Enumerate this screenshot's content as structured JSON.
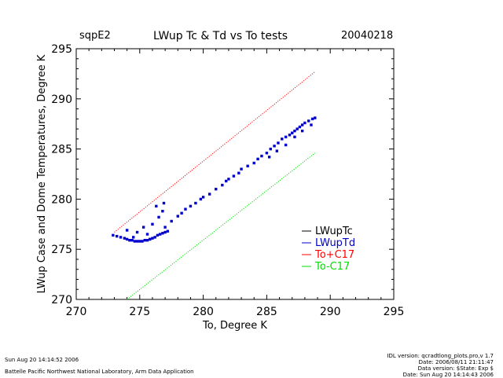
{
  "header": {
    "site": "sqpE2",
    "title": "LWup Tc & Td vs To tests",
    "date": "20040218"
  },
  "footer": {
    "left_line1": "Sun Aug 20 14:14:52 2006",
    "left_line2": "Battelle Pacific Northwest National Laboratory, Arm Data Application",
    "right_lines": [
      "IDL version: qcradtlong_plots.pro,v 1.7",
      "Date: 2006/08/11 21:11:47",
      "Data version: $State: Exp $",
      "Date: Sun Aug 20 14:14:43 2006"
    ]
  },
  "chart_data": {
    "type": "scatter",
    "title": "LWup Tc & Td vs To tests",
    "xlabel": "To, Degree K",
    "ylabel": "LWup Case and Dome Temperatures, Degree K",
    "xlim": [
      270,
      295
    ],
    "ylim": [
      270,
      295
    ],
    "xticks": [
      270,
      275,
      280,
      285,
      290,
      295
    ],
    "yticks": [
      270,
      275,
      280,
      285,
      290,
      295
    ],
    "legend_position": "bottom-right",
    "series": [
      {
        "name": "LWupTc",
        "color": "#000000",
        "marker": "none",
        "x": [],
        "y": []
      },
      {
        "name": "LWupTd",
        "color": "#0000cc",
        "marker": "square",
        "x": [
          272.9,
          273.2,
          273.5,
          273.8,
          274.0,
          274.2,
          274.4,
          274.6,
          274.8,
          275.0,
          275.2,
          275.4,
          275.6,
          275.8,
          276.0,
          276.2,
          276.4,
          276.6,
          276.8,
          277.0,
          277.2,
          276.0,
          276.5,
          276.8,
          277.0,
          277.5,
          278.0,
          278.3,
          278.6,
          279.0,
          279.4,
          279.8,
          280.0,
          280.5,
          281.0,
          281.5,
          281.8,
          282.0,
          282.4,
          282.8,
          283.0,
          283.5,
          284.0,
          284.3,
          284.6,
          285.0,
          285.3,
          285.6,
          285.9,
          286.2,
          286.5,
          286.8,
          287.0,
          287.2,
          287.4,
          287.6,
          287.8,
          288.0,
          288.3,
          288.6,
          288.8,
          285.2,
          285.8,
          286.5,
          287.2,
          287.8,
          288.5,
          274.5,
          275.3,
          275.6,
          275.8,
          276.3,
          276.9,
          274.0,
          274.8
        ],
        "y": [
          276.4,
          276.3,
          276.2,
          276.1,
          276.0,
          275.9,
          275.9,
          275.8,
          275.8,
          275.8,
          275.8,
          275.9,
          275.9,
          276.0,
          276.1,
          276.2,
          276.4,
          276.5,
          276.6,
          276.7,
          276.8,
          277.5,
          278.2,
          278.8,
          277.2,
          277.8,
          278.3,
          278.6,
          279.0,
          279.3,
          279.6,
          280.0,
          280.2,
          280.5,
          281.0,
          281.4,
          281.8,
          282.0,
          282.3,
          282.6,
          283.0,
          283.3,
          283.6,
          284.0,
          284.3,
          284.6,
          285.0,
          285.3,
          285.6,
          286.0,
          286.2,
          286.4,
          286.6,
          286.8,
          287.0,
          287.2,
          287.4,
          287.6,
          287.8,
          288.0,
          288.1,
          284.2,
          284.8,
          285.4,
          286.2,
          286.8,
          287.4,
          276.2,
          277.2,
          276.5,
          276.0,
          279.3,
          279.6,
          276.9,
          276.7
        ]
      },
      {
        "name": "To+C17",
        "color": "#ff0000",
        "marker": "line",
        "x": [
          273.0,
          288.8
        ],
        "y": [
          276.7,
          292.7
        ]
      },
      {
        "name": "To-C17",
        "color": "#00dd00",
        "marker": "line",
        "x": [
          274.0,
          288.8
        ],
        "y": [
          270.0,
          284.6
        ]
      }
    ]
  }
}
